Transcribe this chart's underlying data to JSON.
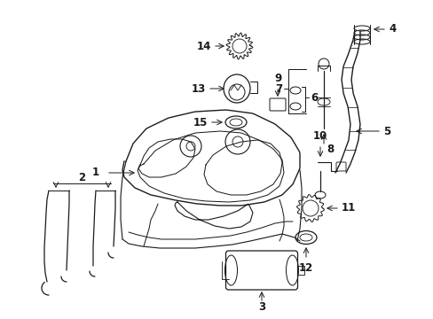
{
  "bg_color": "#ffffff",
  "line_color": "#1a1a1a",
  "label_color": "#000000",
  "figsize": [
    4.89,
    3.6
  ],
  "dpi": 100,
  "label_fontsize": 8.5,
  "arrow_lw": 0.7
}
